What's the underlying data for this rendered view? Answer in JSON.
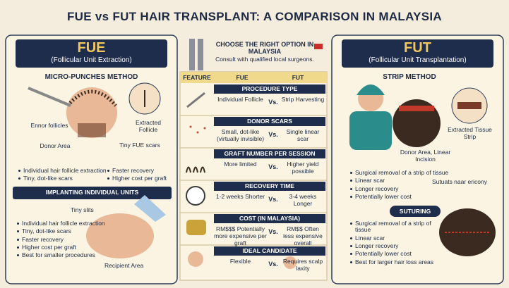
{
  "title": "FUE vs FUT HAIR TRANSPLANT: A COMPARISON IN MALAYSIA",
  "fue": {
    "name": "FUE",
    "subtitle": "(Follicular Unit Extraction)",
    "method": "MICRO-PUNCHES METHOD",
    "labels": [
      "Ennor follicles",
      "Extracted Follicle",
      "Donor Area",
      "Tiny FUE scars"
    ],
    "bullets_left": [
      "Individual hair follicle extraction",
      "Tiny, dot-like scars"
    ],
    "bullets_right": [
      "Faster recovery",
      "Higher cost per graft"
    ],
    "section2": "IMPLANTING INDIVIDUAL UNITS",
    "labels2": [
      "Tiny slits",
      "Recipient Area"
    ],
    "bullets2": [
      "Individual hair follicle extraction",
      "Tiny, dot-like scars",
      "Faster recovery",
      "Higher cost per graft",
      "Best for smaller procedures"
    ]
  },
  "center": {
    "heading": "CHOOSE THE RIGHT OPTION IN MALAYSIA",
    "note": "Consult with qualified local surgeons.",
    "table": {
      "header": [
        "FEATURE",
        "FUE",
        "FUT"
      ],
      "rows": [
        {
          "feature": "PROCEDURE TYPE",
          "fue": "Individual Follicle",
          "vs": "Vs.",
          "fut": "Strip Harvesting"
        },
        {
          "feature": "DONOR SCARS",
          "fue": "Small, dot-like (virtually invisible)",
          "vs": "Vs.",
          "fut": "Single linear scar"
        },
        {
          "feature": "GRAFT NUMBER PER SESSION",
          "fue": "More limited",
          "vs": "Vs.",
          "fut": "Higher yield possible"
        },
        {
          "feature": "RECOVERY TIME",
          "fue": "1-2 weeks Shorter",
          "vs": "Vs.",
          "fut": "3-4 weeks Longer"
        },
        {
          "feature": "COST (IN MALAYSIA)",
          "fue": "RM$$$ Potentially more expensive per graft",
          "vs": "Vs.",
          "fut": "RM$$ Often less expensive overall"
        },
        {
          "feature": "IDEAL CANDIDATE",
          "fue": "Flexible",
          "vs": "Vs.",
          "fut": "Requires scalp laxity"
        }
      ]
    }
  },
  "fut": {
    "name": "FUT",
    "subtitle": "(Follicular Unit Transplantation)",
    "method": "STRIP METHOD",
    "labels": [
      "Extracted Tissue Strip",
      "Donor Area, Linear Incision"
    ],
    "bullets": [
      "Surgical removal of a strip of tissue",
      "Linear scar",
      "Longer recovery",
      "Potentially lower cost"
    ],
    "side_note": "Sutuats naar ericony",
    "section2": "SUTURING",
    "bullets2": [
      "Surgical removal of a strip of tissue",
      "Linear scar",
      "Longer recovery",
      "Potentially lower cost",
      "Best for larger hair loss areas"
    ]
  }
}
